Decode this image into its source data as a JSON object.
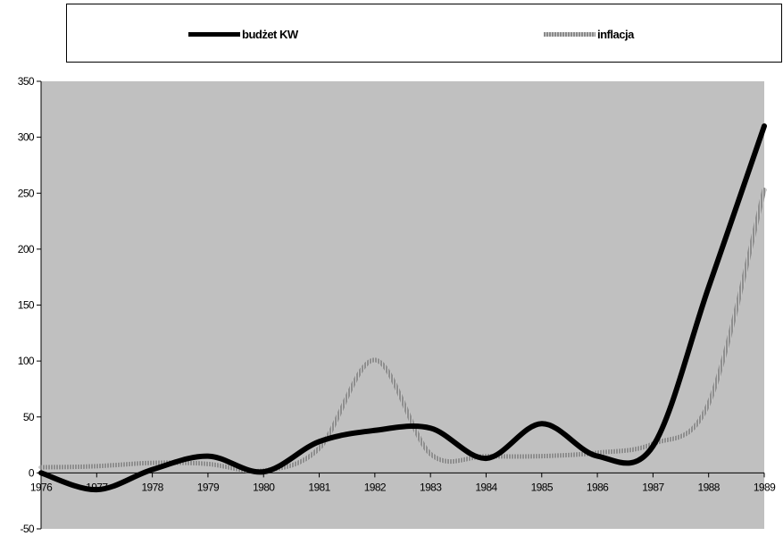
{
  "chart_data": {
    "type": "line",
    "title": "",
    "xlabel": "",
    "ylabel": "",
    "x": [
      "1976",
      "1977",
      "1978",
      "1979",
      "1980",
      "1981",
      "1982",
      "1983",
      "1984",
      "1985",
      "1986",
      "1987",
      "1988",
      "1989"
    ],
    "ylim": [
      -50,
      350
    ],
    "yticks": [
      -50,
      0,
      50,
      100,
      150,
      200,
      250,
      300,
      350
    ],
    "grid": false,
    "legend_position": "top",
    "plot_background": "#c0c0c0",
    "series": [
      {
        "name": "budżet KW",
        "color": "#000000",
        "style": "solid",
        "values": [
          0,
          -15,
          3,
          15,
          1,
          28,
          38,
          40,
          13,
          44,
          15,
          24,
          166,
          310
        ]
      },
      {
        "name": "inflacja",
        "color": "#9a9a9a",
        "style": "hatched",
        "values": [
          5,
          6,
          9,
          8,
          2,
          22,
          101,
          17,
          15,
          15,
          18,
          26,
          62,
          253
        ]
      }
    ]
  }
}
